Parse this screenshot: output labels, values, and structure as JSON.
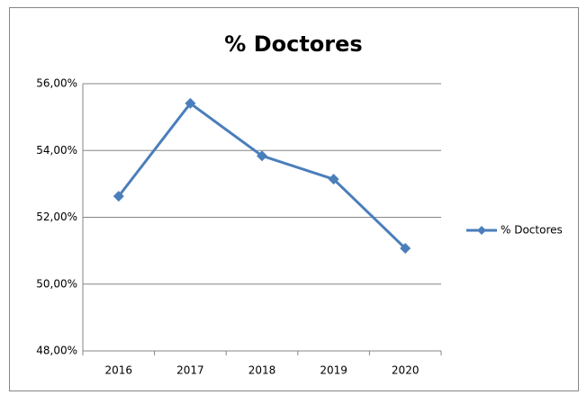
{
  "chart_data": {
    "type": "line",
    "title": "% Doctores",
    "categories": [
      "2016",
      "2017",
      "2018",
      "2019",
      "2020"
    ],
    "series": [
      {
        "name": "% Doctores",
        "color": "#4a7ebb",
        "values": [
          52.63,
          55.41,
          53.84,
          53.14,
          51.07
        ]
      }
    ],
    "ylim": [
      48,
      56
    ],
    "yticks": [
      {
        "value": 48,
        "label": "48,00%"
      },
      {
        "value": 50,
        "label": "50,00%"
      },
      {
        "value": 52,
        "label": "52,00%"
      },
      {
        "value": 54,
        "label": "54,00%"
      },
      {
        "value": 56,
        "label": "56,00%"
      }
    ],
    "grid": true,
    "legend": "right"
  }
}
